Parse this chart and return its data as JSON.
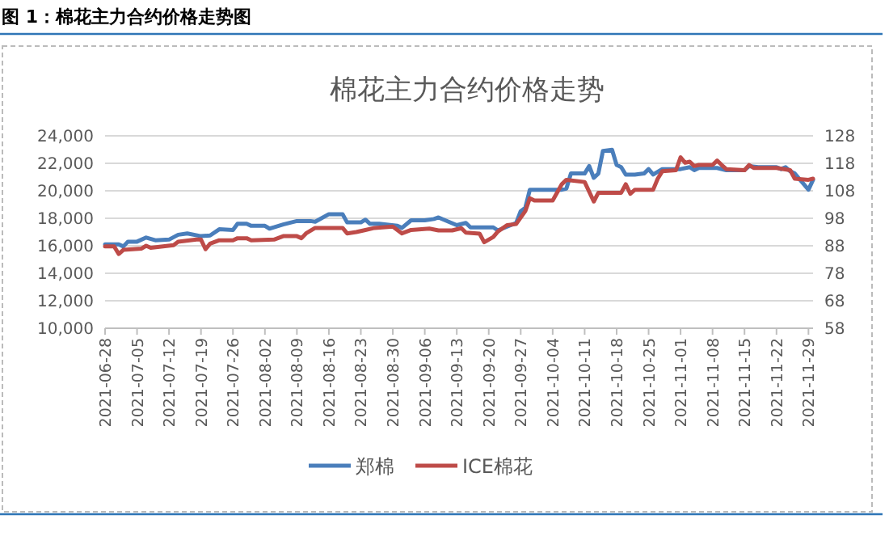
{
  "chart_data": {
    "type": "line",
    "title": "棉花主力合约价格走势",
    "annotations": [
      "图 1：棉花主力合约价格走势图"
    ],
    "xlim": [
      "2021-06-28",
      "2021-11-30"
    ],
    "xticks": [
      "2021-06-28",
      "2021-07-05",
      "2021-07-12",
      "2021-07-19",
      "2021-07-26",
      "2021-08-02",
      "2021-08-09",
      "2021-08-16",
      "2021-08-23",
      "2021-08-30",
      "2021-09-06",
      "2021-09-13",
      "2021-09-20",
      "2021-09-27",
      "2021-10-04",
      "2021-10-11",
      "2021-10-18",
      "2021-10-25",
      "2021-11-01",
      "2021-11-08",
      "2021-11-15",
      "2021-11-22",
      "2021-11-29"
    ],
    "ylim": [
      10000,
      24000
    ],
    "yticks": [
      {
        "value": 10000,
        "label": "10,000"
      },
      {
        "value": 12000,
        "label": "12,000"
      },
      {
        "value": 14000,
        "label": "14,000"
      },
      {
        "value": 16000,
        "label": "16,000"
      },
      {
        "value": 18000,
        "label": "18,000"
      },
      {
        "value": 20000,
        "label": "20,000"
      },
      {
        "value": 22000,
        "label": "22,000"
      },
      {
        "value": 24000,
        "label": "24,000"
      }
    ],
    "y2lim": [
      58,
      128
    ],
    "y2ticks": [
      58,
      68,
      78,
      88,
      98,
      108,
      118,
      128
    ],
    "grid": "y",
    "legend": "bottom",
    "marker": "none",
    "line_style": "solid",
    "series": [
      {
        "name": "郑棉",
        "color": "#4a7ebb",
        "x": [
          "2021-06-28",
          "2021-07-01",
          "2021-07-02",
          "2021-07-03",
          "2021-07-05",
          "2021-07-07",
          "2021-07-09",
          "2021-07-12",
          "2021-07-14",
          "2021-07-16",
          "2021-07-19",
          "2021-07-21",
          "2021-07-23",
          "2021-07-26",
          "2021-07-27",
          "2021-07-29",
          "2021-07-30",
          "2021-08-02",
          "2021-08-03",
          "2021-08-04",
          "2021-08-06",
          "2021-08-09",
          "2021-08-12",
          "2021-08-13",
          "2021-08-16",
          "2021-08-19",
          "2021-08-20",
          "2021-08-23",
          "2021-08-24",
          "2021-08-25",
          "2021-08-27",
          "2021-08-31",
          "2021-09-01",
          "2021-09-03",
          "2021-09-06",
          "2021-09-08",
          "2021-09-09",
          "2021-09-13",
          "2021-09-15",
          "2021-09-16",
          "2021-09-21",
          "2021-09-22",
          "2021-09-26",
          "2021-09-27",
          "2021-09-28",
          "2021-09-29",
          "2021-10-05",
          "2021-10-06",
          "2021-10-07",
          "2021-10-08",
          "2021-10-11",
          "2021-10-12",
          "2021-10-13",
          "2021-10-14",
          "2021-10-15",
          "2021-10-17",
          "2021-10-18",
          "2021-10-19",
          "2021-10-20",
          "2021-10-22",
          "2021-10-24",
          "2021-10-25",
          "2021-10-26",
          "2021-10-28",
          "2021-11-01",
          "2021-11-03",
          "2021-11-04",
          "2021-11-05",
          "2021-11-09",
          "2021-11-11",
          "2021-11-15",
          "2021-11-16",
          "2021-11-18",
          "2021-11-22",
          "2021-11-23",
          "2021-11-24",
          "2021-11-25",
          "2021-11-26",
          "2021-11-29",
          "2021-11-30"
        ],
        "values": [
          16100,
          16100,
          15950,
          16300,
          16300,
          16600,
          16400,
          16450,
          16800,
          16900,
          16700,
          16750,
          17200,
          17150,
          17600,
          17600,
          17450,
          17450,
          17250,
          17350,
          17550,
          17800,
          17800,
          17750,
          18300,
          18300,
          17700,
          17700,
          17900,
          17600,
          17600,
          17450,
          17300,
          17850,
          17850,
          17950,
          18060,
          17500,
          17660,
          17340,
          17340,
          17120,
          17660,
          18520,
          18760,
          20080,
          20080,
          20080,
          20160,
          21260,
          21260,
          21800,
          20940,
          21260,
          22900,
          22980,
          21880,
          21720,
          21180,
          21180,
          21260,
          21580,
          21180,
          21580,
          21580,
          21720,
          21500,
          21660,
          21660,
          21500,
          21500,
          21800,
          21720,
          21720,
          21580,
          21720,
          21420,
          21260,
          20080,
          20800
        ]
      },
      {
        "name": "ICE棉花",
        "color": "#be4b48",
        "axis": "y2",
        "x": [
          "2021-06-28",
          "2021-06-30",
          "2021-07-01",
          "2021-07-02",
          "2021-07-06",
          "2021-07-07",
          "2021-07-08",
          "2021-07-13",
          "2021-07-14",
          "2021-07-18",
          "2021-07-19",
          "2021-07-20",
          "2021-07-21",
          "2021-07-23",
          "2021-07-26",
          "2021-07-27",
          "2021-07-29",
          "2021-07-30",
          "2021-08-04",
          "2021-08-06",
          "2021-08-09",
          "2021-08-10",
          "2021-08-11",
          "2021-08-13",
          "2021-08-19",
          "2021-08-20",
          "2021-08-22",
          "2021-08-24",
          "2021-08-26",
          "2021-08-30",
          "2021-09-01",
          "2021-09-03",
          "2021-09-07",
          "2021-09-09",
          "2021-09-12",
          "2021-09-14",
          "2021-09-15",
          "2021-09-18",
          "2021-09-19",
          "2021-09-21",
          "2021-09-22",
          "2021-09-24",
          "2021-09-26",
          "2021-09-28",
          "2021-09-29",
          "2021-09-30",
          "2021-10-04",
          "2021-10-06",
          "2021-10-07",
          "2021-10-11",
          "2021-10-13",
          "2021-10-14",
          "2021-10-19",
          "2021-10-20",
          "2021-10-21",
          "2021-10-22",
          "2021-10-26",
          "2021-10-27",
          "2021-10-28",
          "2021-10-31",
          "2021-11-01",
          "2021-11-02",
          "2021-11-03",
          "2021-11-04",
          "2021-11-05",
          "2021-11-08",
          "2021-11-09",
          "2021-11-10",
          "2021-11-11",
          "2021-11-15",
          "2021-11-16",
          "2021-11-17",
          "2021-11-22",
          "2021-11-25",
          "2021-11-26",
          "2021-11-29",
          "2021-11-30"
        ],
        "values": [
          87.75,
          87.75,
          85,
          86.5,
          87,
          88,
          87.25,
          88.25,
          89.5,
          90.25,
          90.25,
          86.75,
          88.75,
          90,
          90,
          90.75,
          90.75,
          90,
          90.25,
          91.5,
          91.5,
          90.75,
          92.5,
          94.5,
          94.5,
          92.5,
          93,
          93.75,
          94.5,
          95,
          92.5,
          93.75,
          94.25,
          93.6,
          93.6,
          94.4,
          92.8,
          92.4,
          89.3,
          91.2,
          93.2,
          95.5,
          95.9,
          100.6,
          105.3,
          104.5,
          104.5,
          110.4,
          112,
          111.2,
          104.1,
          107.3,
          107.3,
          110.4,
          106.9,
          108.4,
          108.4,
          112.4,
          115.1,
          115.5,
          120.2,
          118.2,
          118.6,
          117,
          117.4,
          117.4,
          119,
          117.4,
          115.9,
          115.5,
          117.4,
          116.3,
          116.3,
          115.5,
          112.4,
          112,
          112.4
        ]
      }
    ]
  }
}
